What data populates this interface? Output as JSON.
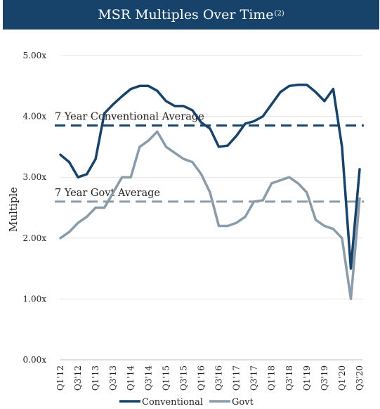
{
  "header": {
    "title": "MSR Multiples Over Time",
    "footnote": "(2)",
    "background": "#17436b"
  },
  "chart_data": {
    "type": "line",
    "title": "MSR Multiples Over Time",
    "ylabel": "Multiple",
    "xlabel": "",
    "ylim": [
      0,
      5
    ],
    "yticks": [
      "0.00x",
      "1.00x",
      "2.00x",
      "3.00x",
      "4.00x",
      "5.00x"
    ],
    "grid": "horizontal",
    "legend_position": "bottom",
    "x": [
      "Q1'12",
      "Q2'12",
      "Q3'12",
      "Q4'12",
      "Q1'13",
      "Q2'13",
      "Q3'13",
      "Q4'13",
      "Q1'14",
      "Q2'14",
      "Q3'14",
      "Q4'14",
      "Q1'15",
      "Q2'15",
      "Q3'15",
      "Q4'15",
      "Q1'16",
      "Q2'16",
      "Q3'16",
      "Q4'16",
      "Q1'17",
      "Q2'17",
      "Q3'17",
      "Q4'17",
      "Q1'18",
      "Q2'18",
      "Q3'18",
      "Q4'18",
      "Q1'19",
      "Q2'19",
      "Q3'19",
      "Q4'19",
      "Q1'20",
      "Q2'20",
      "Q3'20"
    ],
    "xtick_labels": [
      "Q1'12",
      "Q3'12",
      "Q1'13",
      "Q3'13",
      "Q1'14",
      "Q3'14",
      "Q1'15",
      "Q3'15",
      "Q1'16",
      "Q3'16",
      "Q1'17",
      "Q3'17",
      "Q1'18",
      "Q3'18",
      "Q1'19",
      "Q3'19",
      "Q1'20",
      "Q3'20"
    ],
    "series": [
      {
        "name": "Conventional",
        "color": "#17436b",
        "values": [
          3.37,
          3.25,
          3.0,
          3.05,
          3.3,
          4.05,
          4.2,
          4.33,
          4.45,
          4.5,
          4.5,
          4.42,
          4.25,
          4.17,
          4.17,
          4.1,
          3.9,
          3.8,
          3.5,
          3.52,
          3.68,
          3.88,
          3.92,
          4.0,
          4.2,
          4.4,
          4.5,
          4.52,
          4.52,
          4.4,
          4.25,
          4.45,
          3.5,
          1.5,
          3.13
        ]
      },
      {
        "name": "Govt",
        "color": "#8a9baa",
        "values": [
          2.0,
          2.1,
          2.25,
          2.35,
          2.5,
          2.5,
          2.75,
          3.0,
          3.0,
          3.5,
          3.6,
          3.75,
          3.5,
          3.4,
          3.3,
          3.25,
          3.05,
          2.75,
          2.2,
          2.2,
          2.25,
          2.35,
          2.6,
          2.62,
          2.9,
          2.95,
          3.0,
          2.9,
          2.75,
          2.3,
          2.2,
          2.15,
          2.0,
          1.0,
          2.65
        ]
      }
    ],
    "reference_lines": [
      {
        "label": "7 Year Conventional Average",
        "value": 3.85,
        "color": "#17436b"
      },
      {
        "label": "7 Year Govt Average",
        "value": 2.6,
        "color": "#8a9baa"
      }
    ]
  }
}
